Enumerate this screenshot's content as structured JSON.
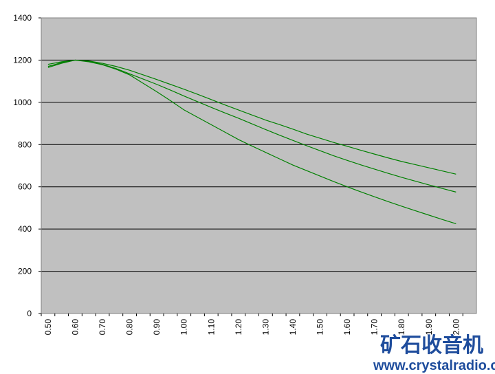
{
  "chart_data": {
    "type": "line",
    "categories": [
      "0.50",
      null,
      "0.60",
      null,
      "0.70",
      null,
      "0.80",
      null,
      "0.90",
      null,
      "1.00",
      null,
      "1.10",
      null,
      "1.20",
      null,
      "1.30",
      null,
      "1.40",
      null,
      "1.50",
      null,
      "1.60",
      null,
      "1.70",
      null,
      "1.80",
      null,
      "1.90",
      null,
      "2.00",
      null
    ],
    "series": [
      {
        "color": "#008000",
        "values": [
          1180,
          1192,
          1200,
          1196,
          1185,
          1170,
          1152,
          1130,
          1108,
          1085,
          1062,
          1038,
          1013,
          988,
          964,
          940,
          916,
          895,
          873,
          850,
          830,
          810,
          792,
          773,
          755,
          737,
          720,
          705,
          690,
          675,
          660,
          null
        ]
      },
      {
        "color": "#008000",
        "values": [
          1170,
          1188,
          1200,
          1194,
          1180,
          1160,
          1135,
          1110,
          1085,
          1058,
          1030,
          1003,
          976,
          950,
          925,
          898,
          871,
          845,
          820,
          795,
          771,
          747,
          725,
          704,
          684,
          664,
          645,
          627,
          609,
          592,
          575,
          null
        ]
      },
      {
        "color": "#008000",
        "values": [
          1165,
          1185,
          1200,
          1192,
          1178,
          1157,
          1130,
          1090,
          1050,
          1008,
          964,
          929,
          894,
          859,
          824,
          793,
          763,
          733,
          703,
          677,
          651,
          625,
          600,
          576,
          553,
          530,
          508,
          487,
          466,
          445,
          425,
          null
        ]
      }
    ],
    "ylim": [
      0,
      1400
    ],
    "yticks": [
      0,
      200,
      400,
      600,
      800,
      1000,
      1200,
      1400
    ],
    "grid": true,
    "plot_background": "#c0c0c0"
  },
  "watermark": {
    "title": "矿石收音机",
    "url": "www.crystalradio.cn"
  }
}
